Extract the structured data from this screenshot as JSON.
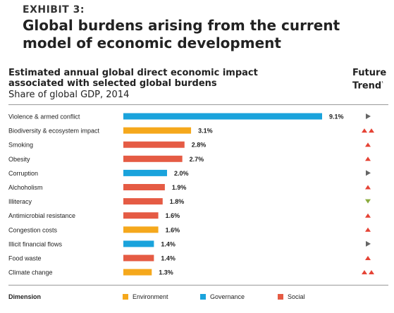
{
  "header": {
    "exhibit": "EXHIBIT 3:",
    "title": "Global burdens arising from the current model of economic development"
  },
  "colors": {
    "Environment": "#f5a81c",
    "Governance": "#1aa3dc",
    "Social": "#e55b44",
    "trend": "#666666",
    "trend_up": "#e54335",
    "trend_down": "#8bab3e"
  },
  "legend": {
    "label": "Dimension",
    "items": [
      {
        "name": "Environment",
        "color": "#f5a81c"
      },
      {
        "name": "Governance",
        "color": "#1aa3dc"
      },
      {
        "name": "Social",
        "color": "#e55b44"
      }
    ]
  },
  "chart_data": {
    "type": "bar",
    "orientation": "horizontal",
    "title": "Estimated annual global direct economic impact associated with selected global burdens",
    "subtitle": "Share of global GDP, 2014",
    "trend_header": "Future Trend",
    "trend_footnote_mark": "¹",
    "value_suffix": "%",
    "xlim": [
      0,
      9.1
    ],
    "grid": false,
    "legend_position": "bottom",
    "categories": [
      "Violence & armed conflict",
      "Biodiversity & ecosystem impact",
      "Smoking",
      "Obesity",
      "Corruption",
      "Alchoholism",
      "Illiteracy",
      "Antimicrobial resistance",
      "Congestion costs",
      "Illicit financial flows",
      "Food waste",
      "Climate change"
    ],
    "values": [
      9.1,
      3.1,
      2.8,
      2.7,
      2.0,
      1.9,
      1.8,
      1.6,
      1.6,
      1.4,
      1.4,
      1.3
    ],
    "dimensions": [
      "Governance",
      "Environment",
      "Social",
      "Social",
      "Governance",
      "Social",
      "Social",
      "Social",
      "Environment",
      "Governance",
      "Social",
      "Environment"
    ],
    "trends": [
      "stable",
      "strong-increase",
      "increase",
      "increase",
      "stable",
      "increase",
      "decrease",
      "increase",
      "increase",
      "stable",
      "increase",
      "strong-increase"
    ]
  }
}
